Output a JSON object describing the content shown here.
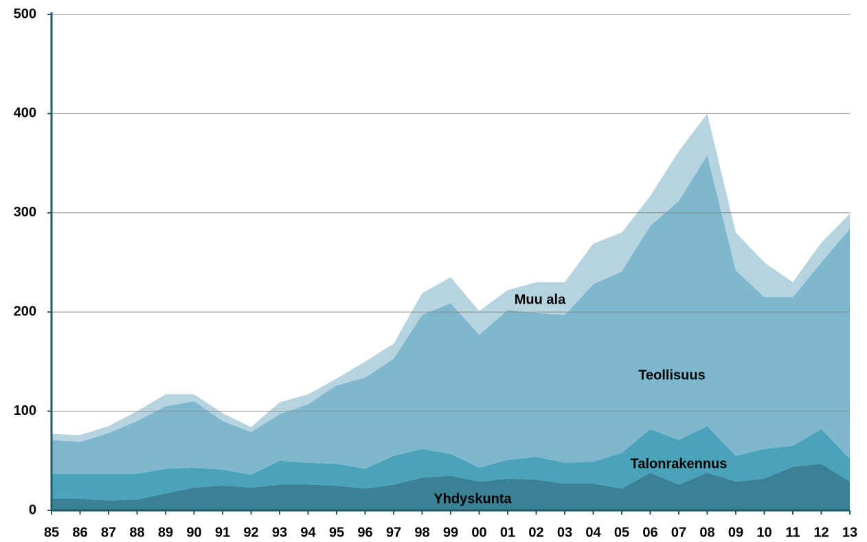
{
  "chart_data": {
    "type": "area",
    "stacked": true,
    "categories": [
      "85",
      "86",
      "87",
      "88",
      "89",
      "90",
      "91",
      "92",
      "93",
      "94",
      "95",
      "96",
      "97",
      "98",
      "99",
      "00",
      "01",
      "02",
      "03",
      "04",
      "05",
      "06",
      "07",
      "08",
      "09",
      "10",
      "11",
      "12",
      "13"
    ],
    "series": [
      {
        "name": "Yhdyskunta",
        "color": "#3a8196",
        "values": [
          12,
          12,
          10,
          11,
          17,
          23,
          25,
          23,
          26,
          26,
          25,
          22,
          26,
          33,
          35,
          29,
          32,
          31,
          27,
          27,
          22,
          38,
          26,
          38,
          29,
          32,
          44,
          47,
          29
        ]
      },
      {
        "name": "Talonrakennus",
        "color": "#4aa3b8",
        "values": [
          25,
          25,
          27,
          26,
          25,
          20,
          16,
          13,
          24,
          22,
          22,
          20,
          29,
          29,
          22,
          14,
          19,
          23,
          21,
          22,
          36,
          44,
          45,
          47,
          26,
          30,
          21,
          35,
          23
        ]
      },
      {
        "name": "Teollisuus",
        "color": "#7fb8ce",
        "values": [
          34,
          32,
          41,
          53,
          63,
          67,
          49,
          43,
          47,
          59,
          79,
          92,
          98,
          135,
          152,
          134,
          151,
          145,
          149,
          179,
          183,
          205,
          241,
          273,
          187,
          153,
          150,
          168,
          232
        ]
      },
      {
        "name": "Muu ala",
        "color": "#b6d4e0",
        "values": [
          6,
          7,
          7,
          10,
          12,
          7,
          8,
          5,
          12,
          10,
          7,
          16,
          15,
          22,
          26,
          24,
          20,
          31,
          33,
          41,
          39,
          30,
          50,
          42,
          38,
          35,
          15,
          20,
          15
        ]
      }
    ],
    "ylim": [
      0,
      500
    ],
    "yticks": [
      0,
      100,
      200,
      300,
      400,
      500
    ],
    "grid": true
  }
}
